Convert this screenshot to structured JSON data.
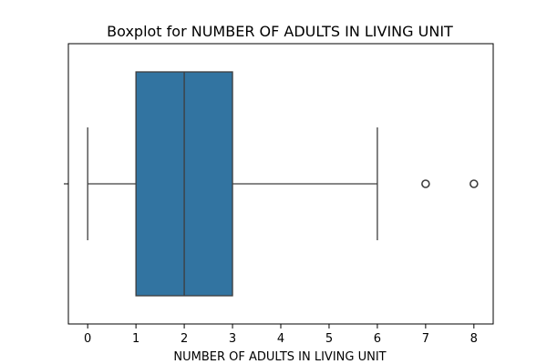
{
  "chart_data": {
    "type": "boxplot",
    "orientation": "horizontal",
    "title": "Boxplot for NUMBER OF ADULTS IN LIVING UNIT",
    "xlabel": "NUMBER OF ADULTS IN LIVING UNIT",
    "ylabel": "",
    "xlim": [
      -0.4,
      8.4
    ],
    "xticks": [
      0,
      1,
      2,
      3,
      4,
      5,
      6,
      7,
      8
    ],
    "xtick_labels": [
      "0",
      "1",
      "2",
      "3",
      "4",
      "5",
      "6",
      "7",
      "8"
    ],
    "grid": false,
    "box": {
      "whisker_low": 0,
      "q1": 1,
      "median": 2,
      "q3": 3,
      "whisker_high": 6,
      "outliers": [
        7,
        8
      ]
    },
    "colors": {
      "box_fill": "#3274a1",
      "lines": "#3d3d3d"
    }
  }
}
